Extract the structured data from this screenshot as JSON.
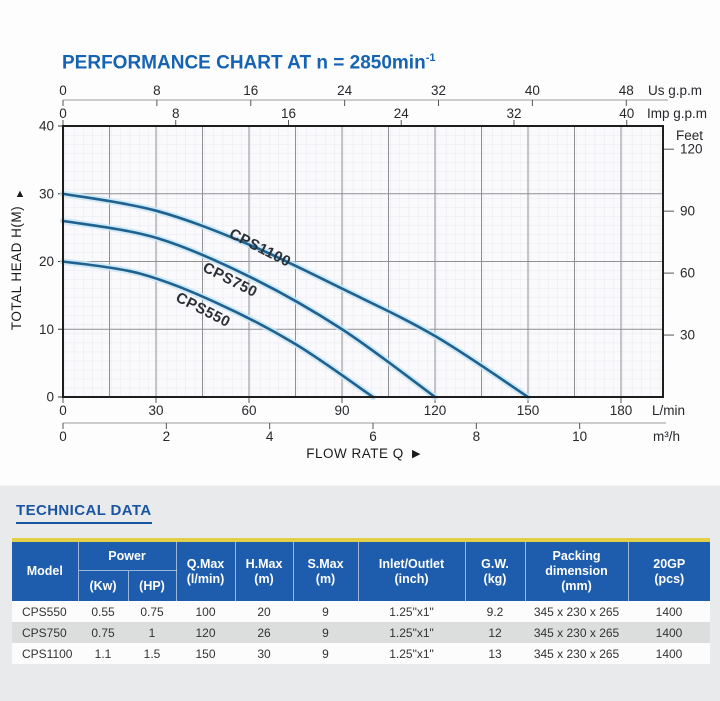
{
  "chart_header": {
    "title_main": "PERFORMANCE CHART AT n = 2850min",
    "title_sup": "-1"
  },
  "chart_data": {
    "type": "line",
    "title": "PERFORMANCE CHART AT n = 2850min-1",
    "xlabel": "FLOW RATE Q",
    "ylabel": "TOTAL HEAD H(M)",
    "x_range_lmin": [
      0,
      180
    ],
    "y_range_m": [
      0,
      40
    ],
    "grid": {
      "x_major_step_lmin": 15,
      "y_major_step_m": 10,
      "fine_grid": true
    },
    "axes": {
      "us_gpm": {
        "unit": "Us g.p.m",
        "ticks": [
          0,
          8,
          16,
          24,
          32,
          40,
          48
        ]
      },
      "imp_gpm": {
        "unit": "Imp g.p.m",
        "ticks": [
          0,
          8,
          16,
          24,
          32,
          40
        ]
      },
      "head_m": {
        "unit": "TOTAL HEAD H(M)",
        "ticks": [
          0,
          10,
          20,
          30,
          40
        ]
      },
      "feet": {
        "unit": "Feet",
        "ticks": [
          120,
          90,
          60,
          30
        ]
      },
      "lmin": {
        "unit": "L/min",
        "ticks": [
          0,
          30,
          60,
          90,
          120,
          150,
          180
        ]
      },
      "m3h": {
        "unit": "m³/h",
        "ticks": [
          0,
          2,
          4,
          6,
          8,
          10
        ]
      }
    },
    "series": [
      {
        "name": "CPS550",
        "h_max_m": 20,
        "q_max_lmin": 100,
        "points": [
          [
            0,
            20
          ],
          [
            25,
            18.2
          ],
          [
            50,
            13.8
          ],
          [
            75,
            7.8
          ],
          [
            100,
            0
          ]
        ],
        "label_pos": [
          201,
          314
        ],
        "label_angle": 27
      },
      {
        "name": "CPS750",
        "h_max_m": 26,
        "q_max_lmin": 120,
        "points": [
          [
            0,
            26
          ],
          [
            30,
            23.5
          ],
          [
            60,
            17.8
          ],
          [
            90,
            10
          ],
          [
            120,
            0
          ]
        ],
        "label_pos": [
          228,
          284
        ],
        "label_angle": 27
      },
      {
        "name": "CPS1100",
        "h_max_m": 30,
        "q_max_lmin": 150,
        "points": [
          [
            0,
            30
          ],
          [
            30,
            27.5
          ],
          [
            60,
            22.5
          ],
          [
            90,
            16
          ],
          [
            120,
            9
          ],
          [
            150,
            0
          ]
        ],
        "label_pos": [
          258,
          252
        ],
        "label_angle": 27
      }
    ],
    "colors": {
      "curve": "#1f628f",
      "curve_halo": "#c9e6f4",
      "grid_major": "#8f9093",
      "plot_border": "#1d1d1d",
      "axis_text": "#26282b",
      "curve_label": "#2b2f36",
      "title_blue": "#1563b2"
    }
  },
  "table_section": {
    "heading": "TECHNICAL DATA",
    "table": {
      "header": {
        "model": "Model",
        "power": "Power",
        "power_kw": "(Kw)",
        "power_hp": "(HP)",
        "qmax_l1": "Q.Max",
        "qmax_l2": "(l/min)",
        "hmax_l1": "H.Max",
        "hmax_l2": "(m)",
        "smax_l1": "S.Max",
        "smax_l2": "(m)",
        "inlet_l1": "Inlet/Outlet",
        "inlet_l2": "(inch)",
        "gw_l1": "G.W.",
        "gw_l2": "(kg)",
        "packing_l1": "Packing",
        "packing_l2": "dimension",
        "packing_l3": "(mm)",
        "gp_l1": "20GP",
        "gp_l2": "(pcs)"
      },
      "rows": [
        {
          "model": "CPS550",
          "kw": "0.55",
          "hp": "0.75",
          "qmax": "100",
          "hmax": "20",
          "smax": "9",
          "inlet": "1.25\"x1\"",
          "gw": "9.2",
          "packing": "345 x 230 x 265",
          "gp": "1400"
        },
        {
          "model": "CPS750",
          "kw": "0.75",
          "hp": "1",
          "qmax": "120",
          "hmax": "26",
          "smax": "9",
          "inlet": "1.25\"x1\"",
          "gw": "12",
          "packing": "345 x 230 x 265",
          "gp": "1400"
        },
        {
          "model": "CPS1100",
          "kw": "1.1",
          "hp": "1.5",
          "qmax": "150",
          "hmax": "30",
          "smax": "9",
          "inlet": "1.25\"x1\"",
          "gw": "13",
          "packing": "345 x 230 x 265",
          "gp": "1400"
        }
      ]
    }
  }
}
